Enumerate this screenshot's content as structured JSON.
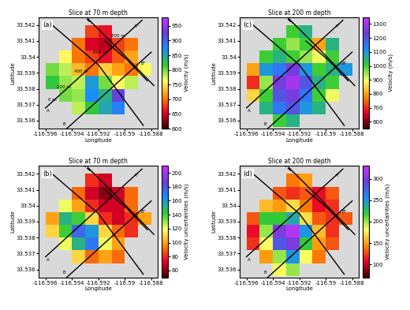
{
  "chart_data": [
    {
      "type": "heatmap",
      "panel": "(a)",
      "title": "Slice at 70 m depth",
      "xlabel": "Longitude",
      "ylabel": "Latitude",
      "xlim": [
        -116.5965,
        -116.5875
      ],
      "ylim": [
        33.5355,
        33.5425
      ],
      "xticks": [
        -116.596,
        -116.594,
        -116.592,
        -116.59,
        -116.588
      ],
      "yticks": [
        33.536,
        33.537,
        33.538,
        33.539,
        33.54,
        33.541,
        33.542
      ],
      "x": [
        -116.5955,
        -116.5945,
        -116.5935,
        -116.5925,
        -116.5915,
        -116.5905,
        -116.5895,
        -116.5885
      ],
      "y": [
        33.536,
        33.5368,
        33.5376,
        33.5384,
        33.5392,
        33.54,
        33.5408,
        33.5416
      ],
      "cells": [
        [
          null,
          null,
          null,
          null,
          null,
          null,
          null,
          null
        ],
        [
          null,
          null,
          780,
          820,
          850,
          880,
          null,
          null
        ],
        [
          null,
          800,
          790,
          870,
          840,
          920,
          null,
          null
        ],
        [
          820,
          790,
          780,
          860,
          800,
          760,
          780,
          null
        ],
        [
          800,
          780,
          730,
          700,
          740,
          720,
          700,
          760
        ],
        [
          null,
          760,
          700,
          680,
          660,
          690,
          720,
          null
        ],
        [
          null,
          null,
          700,
          650,
          640,
          680,
          700,
          null
        ],
        [
          null,
          null,
          null,
          680,
          660,
          null,
          null,
          null
        ]
      ],
      "colorbar_label": "Velocity (m/s)",
      "colorbar_range": [
        600,
        980
      ],
      "colorbar_ticks": [
        600,
        650,
        700,
        750,
        800,
        850,
        900,
        950
      ],
      "annotations": [
        {
          "text": "A",
          "x": -116.5958,
          "y": 33.5366
        },
        {
          "text": "A''",
          "x": -116.5891,
          "y": 33.5419
        },
        {
          "text": "B",
          "x": -116.5946,
          "y": 33.5358
        },
        {
          "text": "B''",
          "x": -116.5886,
          "y": 33.5396
        },
        {
          "text": "0 m",
          "x": -116.5955,
          "y": 33.5373
        },
        {
          "text": "200 m",
          "x": -116.5946,
          "y": 33.5381
        },
        {
          "text": "400 m",
          "x": -116.5933,
          "y": 33.5391
        },
        {
          "text": "600 m",
          "x": -116.5919,
          "y": 33.5403
        },
        {
          "text": "800 m",
          "x": -116.5905,
          "y": 33.5413
        }
      ]
    },
    {
      "type": "heatmap",
      "panel": "(b)",
      "title": "Slice at 70 m depth",
      "xlabel": "Longitude",
      "ylabel": "Latitude",
      "xlim": [
        -116.5965,
        -116.5875
      ],
      "ylim": [
        33.5355,
        33.5425
      ],
      "xticks": [
        -116.596,
        -116.594,
        -116.592,
        -116.59,
        -116.588
      ],
      "yticks": [
        33.536,
        33.537,
        33.538,
        33.539,
        33.54,
        33.541,
        33.542
      ],
      "x": [
        -116.5955,
        -116.5945,
        -116.5935,
        -116.5925,
        -116.5915,
        -116.5905,
        -116.5895,
        -116.5885
      ],
      "y": [
        33.536,
        33.5368,
        33.5376,
        33.5384,
        33.5392,
        33.54,
        33.5408,
        33.5416
      ],
      "cells": [
        [
          null,
          null,
          null,
          null,
          null,
          null,
          null,
          null
        ],
        [
          null,
          null,
          110,
          90,
          100,
          90,
          null,
          null
        ],
        [
          null,
          120,
          150,
          170,
          120,
          100,
          null,
          null
        ],
        [
          110,
          140,
          175,
          160,
          110,
          90,
          80,
          null
        ],
        [
          100,
          150,
          140,
          110,
          80,
          70,
          80,
          100
        ],
        [
          null,
          120,
          100,
          80,
          70,
          70,
          90,
          null
        ],
        [
          null,
          null,
          90,
          70,
          60,
          70,
          90,
          null
        ],
        [
          null,
          null,
          null,
          80,
          70,
          null,
          null,
          null
        ]
      ],
      "colorbar_label": "Velocity uncertainties (m/s)",
      "colorbar_range": [
        50,
        210
      ],
      "colorbar_ticks": [
        60,
        80,
        100,
        120,
        140,
        160,
        180,
        200
      ],
      "annotations": [
        {
          "text": "A",
          "x": -116.5958,
          "y": 33.5366
        },
        {
          "text": "A''",
          "x": -116.5891,
          "y": 33.5419
        },
        {
          "text": "B",
          "x": -116.5946,
          "y": 33.5358
        },
        {
          "text": "B''",
          "x": -116.5886,
          "y": 33.5396
        }
      ]
    },
    {
      "type": "heatmap",
      "panel": "(c)",
      "title": "Slice at 200 m depth",
      "xlabel": "Longitude",
      "ylabel": "Latitude",
      "xlim": [
        -116.5965,
        -116.5875
      ],
      "ylim": [
        33.5355,
        33.5425
      ],
      "xticks": [
        -116.596,
        -116.594,
        -116.592,
        -116.59,
        -116.588
      ],
      "yticks": [
        33.536,
        33.537,
        33.538,
        33.539,
        33.54,
        33.541,
        33.542
      ],
      "x": [
        -116.5955,
        -116.5945,
        -116.5935,
        -116.5925,
        -116.5915,
        -116.5905,
        -116.5895,
        -116.5885
      ],
      "y": [
        33.536,
        33.5368,
        33.5376,
        33.5384,
        33.5392,
        33.54,
        33.5408,
        33.5416
      ],
      "cells": [
        [
          null,
          null,
          1000,
          1050,
          null,
          null,
          null,
          null
        ],
        [
          null,
          1050,
          1150,
          1200,
          1100,
          1050,
          null,
          null
        ],
        [
          850,
          1000,
          1200,
          1250,
          1150,
          1000,
          900,
          null
        ],
        [
          700,
          950,
          1250,
          1300,
          1200,
          1050,
          1000,
          null
        ],
        [
          800,
          1100,
          1150,
          1250,
          1100,
          1000,
          1050,
          1100
        ],
        [
          null,
          1000,
          1050,
          1000,
          950,
          900,
          1000,
          null
        ],
        [
          null,
          null,
          1000,
          950,
          1000,
          800,
          1050,
          null
        ],
        [
          null,
          null,
          null,
          1000,
          1050,
          null,
          null,
          null
        ]
      ],
      "colorbar_label": "Velocity (m/s)",
      "colorbar_range": [
        550,
        1350
      ],
      "colorbar_ticks": [
        600,
        700,
        800,
        900,
        1000,
        1100,
        1200,
        1300
      ],
      "annotations": [
        {
          "text": "A",
          "x": -116.5958,
          "y": 33.5366
        },
        {
          "text": "A''",
          "x": -116.5891,
          "y": 33.5419
        },
        {
          "text": "B",
          "x": -116.5946,
          "y": 33.5358
        },
        {
          "text": "B''",
          "x": -116.5886,
          "y": 33.5396
        }
      ]
    },
    {
      "type": "heatmap",
      "panel": "(d)",
      "title": "Slice at 200 m depth",
      "xlabel": "Longitude",
      "ylabel": "Latitude",
      "xlim": [
        -116.5965,
        -116.5875
      ],
      "ylim": [
        33.5355,
        33.5425
      ],
      "xticks": [
        -116.596,
        -116.594,
        -116.592,
        -116.59,
        -116.588
      ],
      "yticks": [
        33.536,
        33.537,
        33.538,
        33.539,
        33.54,
        33.541,
        33.542
      ],
      "x": [
        -116.5955,
        -116.5945,
        -116.5935,
        -116.5925,
        -116.5915,
        -116.5905,
        -116.5895,
        -116.5885
      ],
      "y": [
        33.536,
        33.5368,
        33.5376,
        33.5384,
        33.5392,
        33.54,
        33.5408,
        33.5416
      ],
      "cells": [
        [
          null,
          null,
          180,
          200,
          null,
          null,
          null,
          null
        ],
        [
          null,
          150,
          200,
          250,
          180,
          140,
          null,
          null
        ],
        [
          120,
          180,
          280,
          300,
          220,
          150,
          130,
          null
        ],
        [
          110,
          200,
          300,
          320,
          250,
          160,
          120,
          null
        ],
        [
          130,
          220,
          220,
          240,
          170,
          130,
          120,
          130
        ],
        [
          null,
          160,
          150,
          170,
          140,
          110,
          120,
          null
        ],
        [
          null,
          null,
          130,
          120,
          130,
          110,
          130,
          null
        ],
        [
          null,
          null,
          null,
          140,
          150,
          null,
          null,
          null
        ]
      ],
      "colorbar_label": "Velocity uncertainties (m/s)",
      "colorbar_range": [
        70,
        330
      ],
      "colorbar_ticks": [
        100,
        150,
        200,
        250,
        300
      ],
      "annotations": [
        {
          "text": "A",
          "x": -116.5958,
          "y": 33.5366
        },
        {
          "text": "A''",
          "x": -116.5891,
          "y": 33.5419
        },
        {
          "text": "B",
          "x": -116.5946,
          "y": 33.5358
        },
        {
          "text": "B''",
          "x": -116.5886,
          "y": 33.5396
        }
      ]
    }
  ],
  "lines": [
    {
      "line_style": "solid",
      "points": [
        [
          -116.596,
          33.5368
        ],
        [
          -116.5887,
          33.5423
        ]
      ]
    },
    {
      "line_style": "solid",
      "points": [
        [
          -116.5948,
          33.5352
        ],
        [
          -116.588,
          33.5403
        ]
      ]
    },
    {
      "line_style": "solid",
      "points": [
        [
          -116.5955,
          33.542
        ],
        [
          -116.592,
          33.5395
        ],
        [
          -116.5886,
          33.5357
        ]
      ]
    },
    {
      "line_style": "solid",
      "points": [
        [
          -116.5928,
          33.5424
        ],
        [
          -116.5905,
          33.5405
        ],
        [
          -116.5878,
          33.5382
        ]
      ]
    },
    {
      "line_style": "solid",
      "points": [
        [
          -116.5915,
          33.541
        ],
        [
          -116.5898,
          33.5398
        ],
        [
          -116.5883,
          33.5385
        ]
      ]
    },
    {
      "line_style": "dashed",
      "points": [
        [
          -116.5932,
          33.5426
        ],
        [
          -116.5925,
          33.5421
        ]
      ]
    }
  ]
}
